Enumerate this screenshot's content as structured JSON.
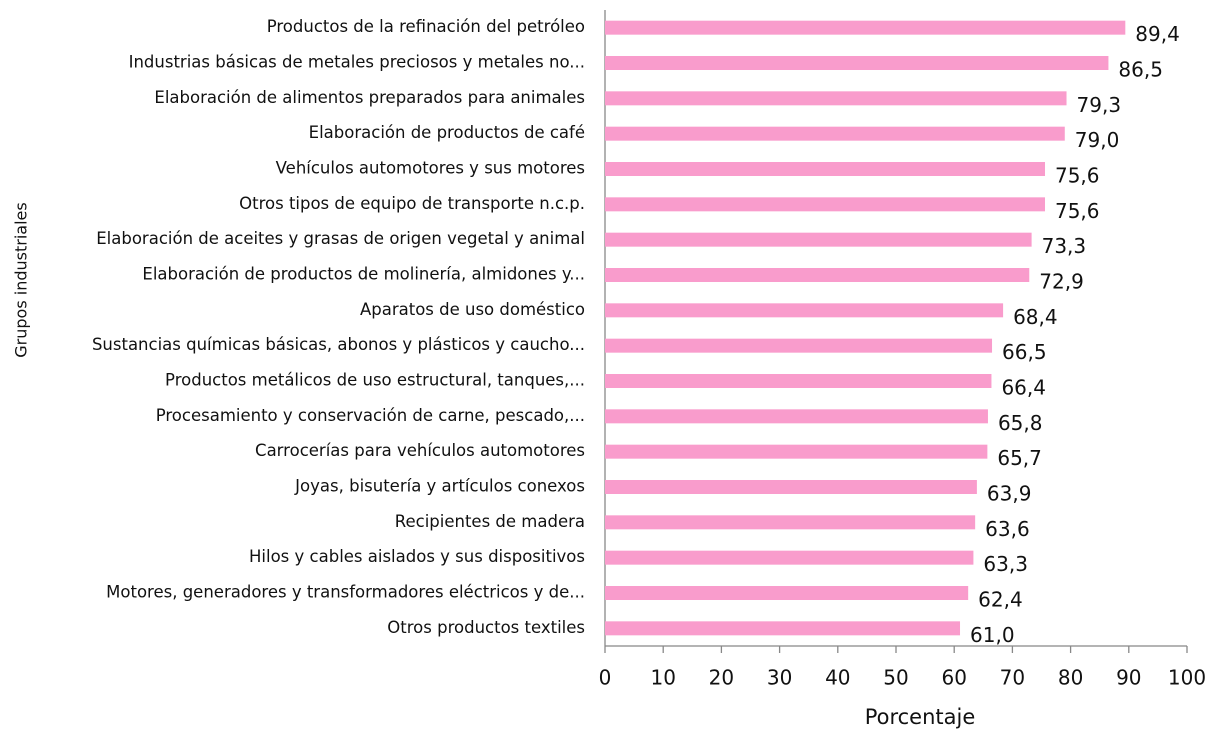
{
  "chart_data": {
    "type": "bar",
    "orientation": "horizontal",
    "x_label": "Porcentaje",
    "y_label": "Grupos industriales",
    "categories": [
      "Productos de la refinación del petróleo",
      "Industrias básicas de metales preciosos y metales no...",
      "Elaboración de alimentos preparados para animales",
      "Elaboración de productos de café",
      "Vehículos automotores y sus motores",
      "Otros tipos de equipo de transporte n.c.p.",
      "Elaboración de aceites y grasas de origen vegetal y animal",
      "Elaboración de productos de molinería, almidones y...",
      "Aparatos de uso doméstico",
      "Sustancias químicas básicas, abonos y  plásticos y caucho...",
      "Productos metálicos de uso estructural, tanques,...",
      "Procesamiento y conservación de carne, pescado,...",
      "Carrocerías para vehículos automotores",
      "Joyas, bisutería y artículos conexos",
      "Recipientes de madera",
      "Hilos y cables aislados y sus dispositivos",
      "Motores, generadores y transformadores eléctricos y de...",
      "Otros productos textiles"
    ],
    "values": [
      89.4,
      86.5,
      79.3,
      79.0,
      75.6,
      75.6,
      73.3,
      72.9,
      68.4,
      66.5,
      66.4,
      65.8,
      65.7,
      63.9,
      63.6,
      63.3,
      62.4,
      61.0
    ],
    "value_labels": [
      "89,4",
      "86,5",
      "79,3",
      "79,0",
      "75,6",
      "75,6",
      "73,3",
      "72,9",
      "68,4",
      "66,5",
      "66,4",
      "65,8",
      "65,7",
      "63,9",
      "63,6",
      "63,3",
      "62,4",
      "61,0"
    ],
    "color": "#f99ccc",
    "xlim": [
      0,
      100
    ],
    "xticks": [
      0,
      10,
      20,
      30,
      40,
      50,
      60,
      70,
      80,
      90,
      100
    ],
    "grid": false
  }
}
